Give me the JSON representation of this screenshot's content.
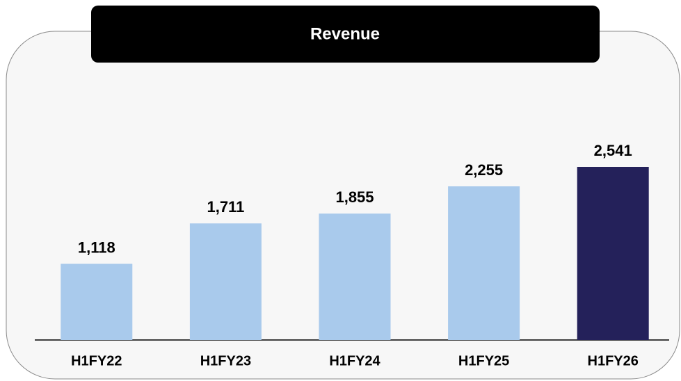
{
  "chart_data": {
    "type": "bar",
    "title": "Revenue",
    "categories": [
      "H1FY22",
      "H1FY23",
      "H1FY24",
      "H1FY25",
      "H1FY26"
    ],
    "values": [
      1118,
      1711,
      1855,
      2255,
      2541
    ],
    "value_labels": [
      "1,118",
      "1,711",
      "1,855",
      "2,255",
      "2,541"
    ],
    "colors": [
      "#a9caec",
      "#a9caec",
      "#a9caec",
      "#a9caec",
      "#24215a"
    ]
  }
}
